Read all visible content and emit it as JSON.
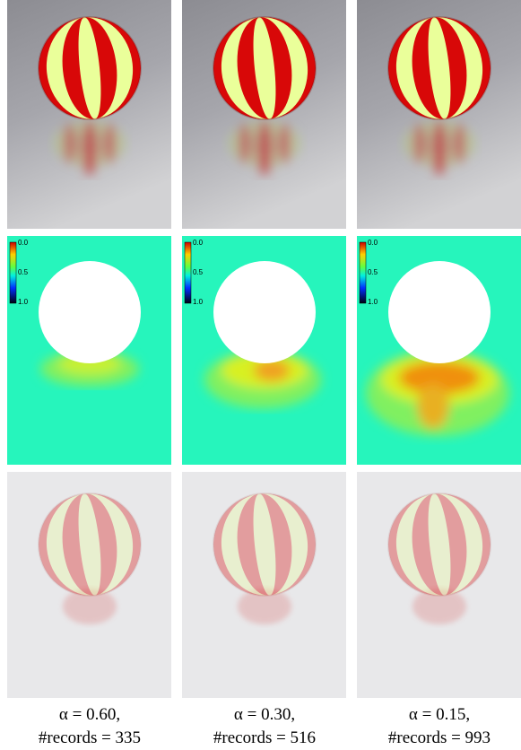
{
  "panels": [
    {
      "caption_line1": "α = 0.60,",
      "caption_line2": "#records = 335"
    },
    {
      "caption_line1": "α = 0.30,",
      "caption_line2": "#records = 516"
    },
    {
      "caption_line1": "α = 0.15,",
      "caption_line2": "#records = 993"
    }
  ],
  "colorbar_labels": [
    "0.0",
    "0.5",
    "1.0"
  ]
}
